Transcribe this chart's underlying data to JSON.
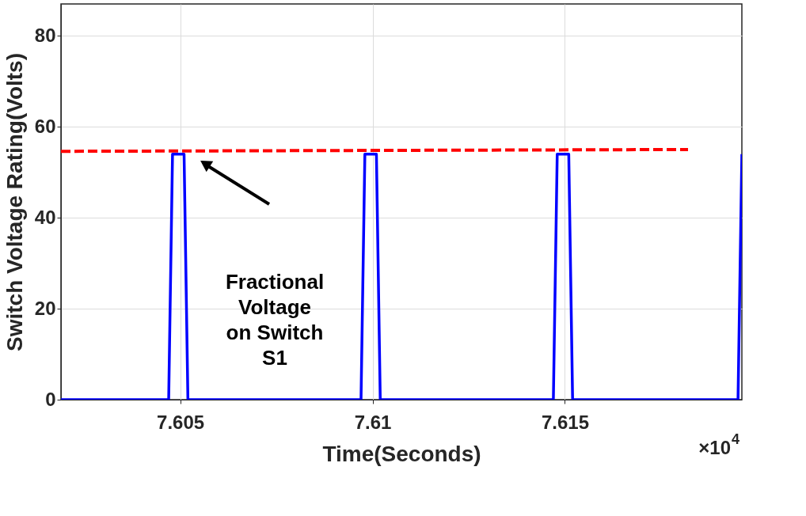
{
  "chart_data": {
    "type": "line",
    "xlabel": "Time(Seconds)",
    "ylabel": "Switch Voltage Rating(Volts)",
    "xlim": [
      7.6019,
      7.6196
    ],
    "ylim": [
      0,
      87
    ],
    "xticks": [
      7.605,
      7.61,
      7.615
    ],
    "yticks": [
      0,
      20,
      40,
      60,
      80
    ],
    "grid": true,
    "marker": "none",
    "series": [
      {
        "color": "#0000ff",
        "line_style": "solid",
        "x": [
          7.6019,
          7.6047,
          7.6048,
          7.6051,
          7.6052,
          7.6097,
          7.6098,
          7.6101,
          7.6102,
          7.6147,
          7.6148,
          7.6151,
          7.6152,
          7.6195,
          7.6196
        ],
        "values": [
          0,
          0,
          54,
          54,
          0,
          0,
          54,
          54,
          0,
          0,
          54,
          54,
          0,
          0,
          54
        ]
      },
      {
        "color": "#ff0000",
        "line_style": "dashed",
        "x": [
          7.6019,
          7.6182
        ],
        "values": [
          54.6,
          55.0
        ]
      }
    ],
    "annotations": [
      "Fractional\nVoltage\non Switch\nS1",
      "×10$^{4}$"
    ]
  }
}
